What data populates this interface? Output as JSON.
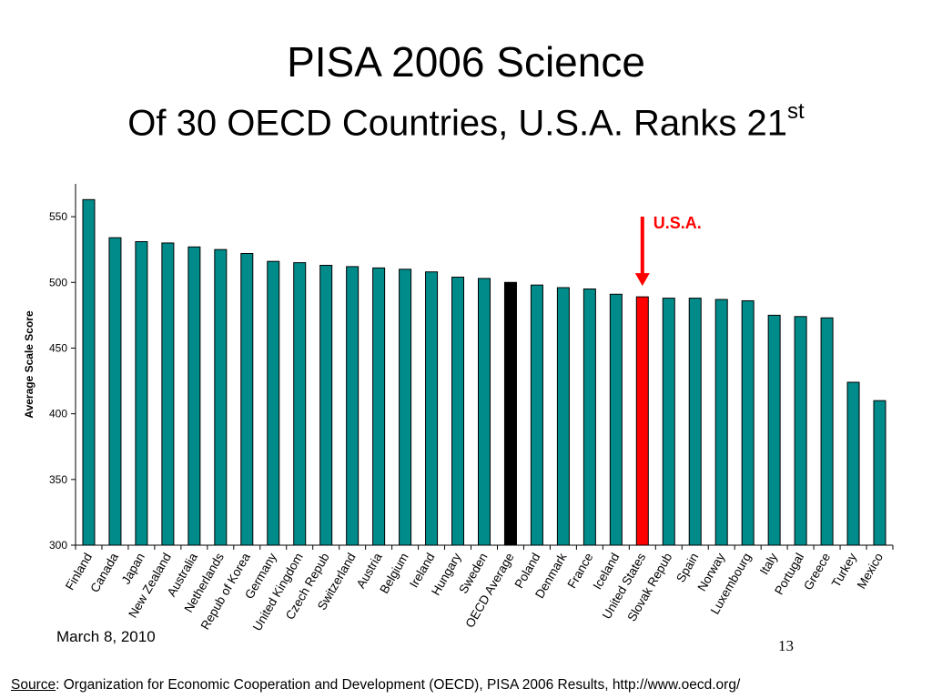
{
  "slide": {
    "title": "PISA 2006 Science",
    "subtitle_main": "Of 30 OECD Countries, U.S.A. Ranks 21",
    "subtitle_sup": "st",
    "date": "March 8, 2010",
    "slide_number": "13",
    "source_label": "Source",
    "source_text": ": Organization for Economic Cooperation and Development (OECD), PISA 2006 Results, http://www.oecd.org/"
  },
  "chart_data": {
    "type": "bar",
    "ylabel": "Average Scale Score",
    "ylim": [
      300,
      575
    ],
    "yticks": [
      300,
      350,
      400,
      450,
      500,
      550
    ],
    "grid": false,
    "categories": [
      "Finland",
      "Canada",
      "Japan",
      "New Zealand",
      "Australia",
      "Netherlands",
      "Repub of Korea",
      "Germany",
      "United Kingdom",
      "Czech Repub",
      "Switzerland",
      "Austria",
      "Belgium",
      "Ireland",
      "Hungary",
      "Sweden",
      "OECD Average",
      "Poland",
      "Denmark",
      "France",
      "Iceland",
      "United States",
      "Slovak Repub",
      "Spain",
      "Norway",
      "Luxembourg",
      "Italy",
      "Portugal",
      "Greece",
      "Turkey",
      "Mexico"
    ],
    "values": [
      563,
      534,
      531,
      530,
      527,
      525,
      522,
      516,
      515,
      513,
      512,
      511,
      510,
      508,
      504,
      503,
      500,
      498,
      496,
      495,
      491,
      489,
      488,
      488,
      487,
      486,
      475,
      474,
      473,
      424,
      410
    ],
    "bar_colors": {
      "default": "#008B8B",
      "OECD Average": "#000000",
      "United States": "#FF0000"
    },
    "annotation": {
      "text": "U.S.A.",
      "color": "#FF0000",
      "target": "United States"
    }
  }
}
